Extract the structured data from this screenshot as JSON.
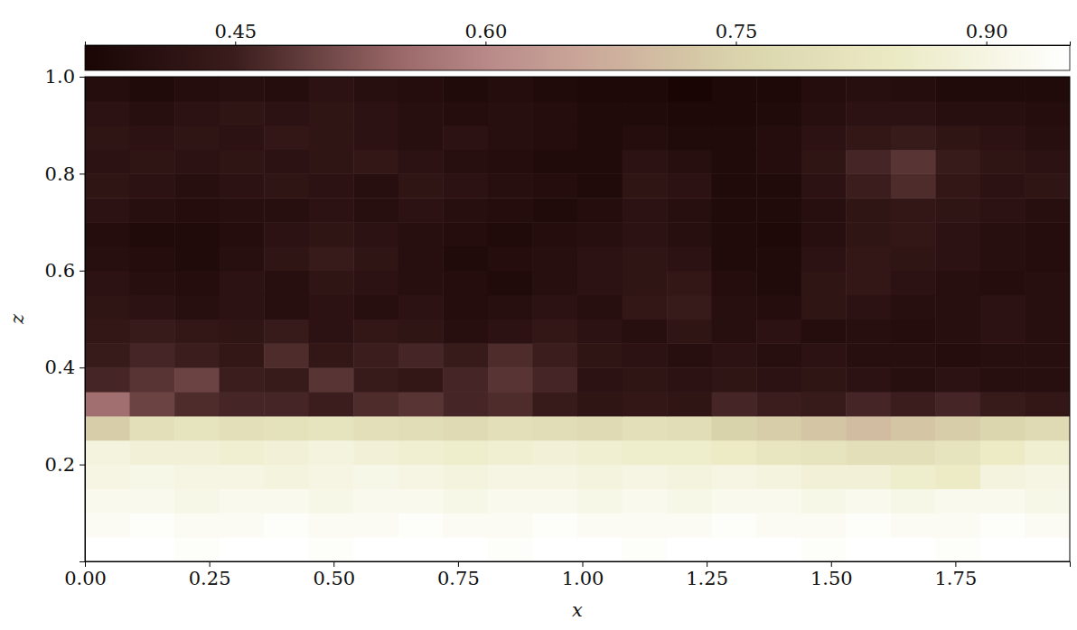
{
  "chart_data": {
    "type": "heatmap",
    "x_label": "x",
    "y_label": "z",
    "xlim": [
      0,
      1.98
    ],
    "ylim": [
      0,
      1
    ],
    "xticks": [
      {
        "value": 0,
        "label": "0.00"
      },
      0.25,
      {
        "value": 0.5,
        "label": "0.50"
      },
      0.75,
      {
        "value": 1,
        "label": "1.00"
      },
      1.25,
      {
        "value": 1.5,
        "label": "1.50"
      },
      1.75
    ],
    "yticks": [
      0.2,
      0.4,
      0.6,
      0.8,
      {
        "value": 1,
        "label": "1.0"
      }
    ],
    "x_bins": [
      0,
      0.09,
      0.18,
      0.27,
      0.36,
      0.45,
      0.54,
      0.63,
      0.72,
      0.81,
      0.9,
      0.99,
      1.08,
      1.17,
      1.26,
      1.35,
      1.44,
      1.53,
      1.62,
      1.71,
      1.8,
      1.89,
      1.98
    ],
    "y_bins": [
      0,
      0.05,
      0.1,
      0.15,
      0.2,
      0.25,
      0.3,
      0.35,
      0.4,
      0.45,
      0.5,
      0.55,
      0.6,
      0.65,
      0.7,
      0.75,
      0.8,
      0.85,
      0.9,
      0.95,
      1
    ],
    "values": [
      [
        0.95,
        0.95,
        0.94,
        0.95,
        0.95,
        0.94,
        0.95,
        0.95,
        0.95,
        0.94,
        0.95,
        0.95,
        0.94,
        0.95,
        0.95,
        0.95,
        0.94,
        0.95,
        0.95,
        0.94,
        0.95,
        0.95
      ],
      [
        0.93,
        0.94,
        0.93,
        0.93,
        0.94,
        0.93,
        0.93,
        0.94,
        0.93,
        0.93,
        0.94,
        0.93,
        0.93,
        0.93,
        0.94,
        0.93,
        0.93,
        0.94,
        0.93,
        0.93,
        0.94,
        0.93
      ],
      [
        0.92,
        0.92,
        0.91,
        0.92,
        0.92,
        0.91,
        0.92,
        0.92,
        0.91,
        0.92,
        0.92,
        0.91,
        0.92,
        0.91,
        0.92,
        0.92,
        0.91,
        0.92,
        0.91,
        0.92,
        0.92,
        0.91
      ],
      [
        0.9,
        0.91,
        0.9,
        0.9,
        0.89,
        0.9,
        0.91,
        0.9,
        0.89,
        0.9,
        0.9,
        0.89,
        0.9,
        0.89,
        0.9,
        0.89,
        0.88,
        0.88,
        0.86,
        0.85,
        0.89,
        0.9
      ],
      [
        0.89,
        0.88,
        0.88,
        0.87,
        0.88,
        0.89,
        0.88,
        0.87,
        0.86,
        0.87,
        0.88,
        0.87,
        0.86,
        0.86,
        0.85,
        0.83,
        0.82,
        0.8,
        0.8,
        0.82,
        0.85,
        0.87
      ],
      [
        0.74,
        0.8,
        0.82,
        0.8,
        0.81,
        0.82,
        0.8,
        0.79,
        0.78,
        0.8,
        0.79,
        0.78,
        0.8,
        0.79,
        0.75,
        0.74,
        0.72,
        0.7,
        0.72,
        0.74,
        0.76,
        0.78
      ],
      [
        0.56,
        0.5,
        0.47,
        0.46,
        0.46,
        0.45,
        0.47,
        0.48,
        0.46,
        0.47,
        0.44,
        0.42,
        0.43,
        0.42,
        0.46,
        0.45,
        0.44,
        0.46,
        0.45,
        0.46,
        0.44,
        0.43
      ],
      [
        0.46,
        0.48,
        0.5,
        0.45,
        0.44,
        0.48,
        0.44,
        0.43,
        0.46,
        0.48,
        0.46,
        0.41,
        0.42,
        0.41,
        0.42,
        0.41,
        0.42,
        0.41,
        0.4,
        0.41,
        0.4,
        0.4
      ],
      [
        0.44,
        0.46,
        0.45,
        0.43,
        0.47,
        0.43,
        0.45,
        0.46,
        0.44,
        0.47,
        0.45,
        0.42,
        0.41,
        0.4,
        0.41,
        0.4,
        0.41,
        0.4,
        0.4,
        0.39,
        0.4,
        0.4
      ],
      [
        0.43,
        0.44,
        0.43,
        0.42,
        0.44,
        0.41,
        0.43,
        0.42,
        0.4,
        0.41,
        0.43,
        0.41,
        0.4,
        0.42,
        0.4,
        0.41,
        0.39,
        0.4,
        0.39,
        0.4,
        0.41,
        0.4
      ],
      [
        0.42,
        0.41,
        0.4,
        0.41,
        0.4,
        0.41,
        0.4,
        0.41,
        0.39,
        0.4,
        0.41,
        0.4,
        0.43,
        0.44,
        0.4,
        0.39,
        0.42,
        0.41,
        0.4,
        0.4,
        0.41,
        0.4
      ],
      [
        0.41,
        0.4,
        0.39,
        0.41,
        0.4,
        0.42,
        0.41,
        0.4,
        0.39,
        0.38,
        0.4,
        0.41,
        0.42,
        0.43,
        0.39,
        0.38,
        0.42,
        0.43,
        0.41,
        0.4,
        0.39,
        0.4
      ],
      [
        0.4,
        0.39,
        0.38,
        0.4,
        0.42,
        0.44,
        0.42,
        0.4,
        0.38,
        0.39,
        0.4,
        0.41,
        0.42,
        0.41,
        0.38,
        0.38,
        0.41,
        0.43,
        0.42,
        0.41,
        0.4,
        0.39
      ],
      [
        0.39,
        0.38,
        0.38,
        0.39,
        0.41,
        0.42,
        0.41,
        0.4,
        0.39,
        0.38,
        0.39,
        0.4,
        0.41,
        0.4,
        0.38,
        0.37,
        0.4,
        0.42,
        0.43,
        0.41,
        0.4,
        0.39
      ],
      [
        0.41,
        0.4,
        0.39,
        0.4,
        0.4,
        0.41,
        0.4,
        0.41,
        0.4,
        0.39,
        0.38,
        0.39,
        0.41,
        0.4,
        0.38,
        0.38,
        0.4,
        0.42,
        0.43,
        0.42,
        0.41,
        0.4
      ],
      [
        0.42,
        0.41,
        0.4,
        0.41,
        0.42,
        0.41,
        0.4,
        0.42,
        0.41,
        0.4,
        0.39,
        0.38,
        0.42,
        0.41,
        0.38,
        0.38,
        0.41,
        0.45,
        0.47,
        0.43,
        0.41,
        0.42
      ],
      [
        0.41,
        0.42,
        0.41,
        0.42,
        0.41,
        0.42,
        0.43,
        0.41,
        0.4,
        0.39,
        0.38,
        0.38,
        0.41,
        0.4,
        0.38,
        0.39,
        0.42,
        0.46,
        0.48,
        0.44,
        0.42,
        0.41
      ],
      [
        0.42,
        0.41,
        0.42,
        0.41,
        0.43,
        0.42,
        0.41,
        0.4,
        0.41,
        0.4,
        0.39,
        0.38,
        0.39,
        0.38,
        0.38,
        0.39,
        0.41,
        0.43,
        0.44,
        0.42,
        0.41,
        0.4
      ],
      [
        0.41,
        0.4,
        0.41,
        0.42,
        0.41,
        0.42,
        0.41,
        0.4,
        0.39,
        0.4,
        0.39,
        0.38,
        0.38,
        0.37,
        0.37,
        0.38,
        0.4,
        0.41,
        0.41,
        0.4,
        0.4,
        0.39
      ],
      [
        0.39,
        0.38,
        0.39,
        0.4,
        0.39,
        0.41,
        0.4,
        0.39,
        0.38,
        0.39,
        0.38,
        0.37,
        0.37,
        0.36,
        0.37,
        0.37,
        0.39,
        0.4,
        0.39,
        0.38,
        0.38,
        0.38
      ]
    ],
    "colorbar": {
      "range": [
        0.36,
        0.95
      ],
      "ticks": [
        0.45,
        {
          "value": 0.6,
          "label": "0.60"
        },
        0.75,
        {
          "value": 0.9,
          "label": "0.90"
        }
      ]
    }
  }
}
